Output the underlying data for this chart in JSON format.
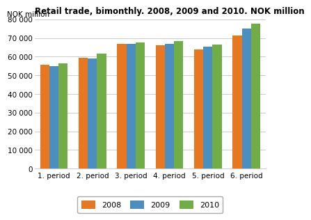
{
  "title": "Retail trade, bimonthly. 2008, 2009 and 2010. NOK million",
  "ylabel": "NOK million",
  "categories": [
    "1. period",
    "2. period",
    "3. period",
    "4. period",
    "5. period",
    "6. period"
  ],
  "series": {
    "2008": [
      55500,
      59300,
      66700,
      66300,
      63700,
      71200
    ],
    "2009": [
      54800,
      59200,
      67000,
      67000,
      65500,
      75000
    ],
    "2010": [
      56600,
      61800,
      67600,
      68200,
      66400,
      77800
    ]
  },
  "colors": {
    "2008": "#E87722",
    "2009": "#4C8EBF",
    "2010": "#70AD47"
  },
  "ylim": [
    0,
    80000
  ],
  "yticks": [
    0,
    10000,
    20000,
    30000,
    40000,
    50000,
    60000,
    70000,
    80000
  ],
  "legend_labels": [
    "2008",
    "2009",
    "2010"
  ],
  "background_color": "#ffffff",
  "grid_color": "#cccccc",
  "title_fontsize": 8.5,
  "axis_fontsize": 7.5,
  "legend_fontsize": 8.0,
  "bar_width": 0.24
}
